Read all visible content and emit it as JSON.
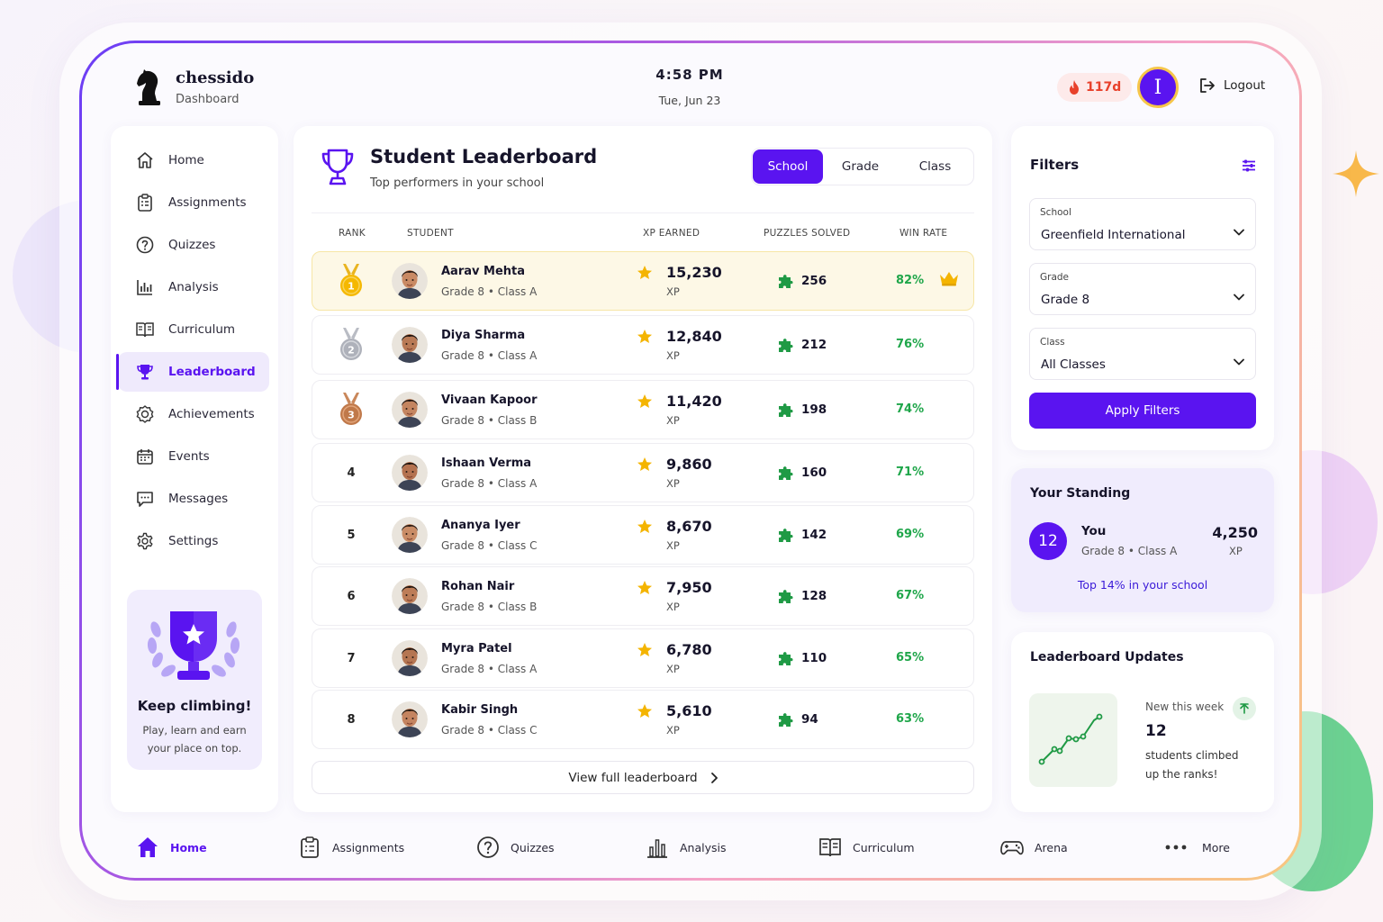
{
  "app": {
    "brand": "chessido",
    "subtitle": "Dashboard"
  },
  "header": {
    "time": "4:58 PM",
    "date": "Tue, Jun 23",
    "streak": "117d",
    "avatar_initial": "I",
    "logout": "Logout"
  },
  "sidebar": {
    "items": [
      {
        "label": "Home",
        "icon": "home-icon"
      },
      {
        "label": "Assignments",
        "icon": "clipboard-icon"
      },
      {
        "label": "Quizzes",
        "icon": "question-icon"
      },
      {
        "label": "Analysis",
        "icon": "bar-chart-icon"
      },
      {
        "label": "Curriculum",
        "icon": "book-icon"
      },
      {
        "label": "Leaderboard",
        "icon": "trophy-icon",
        "active": true
      },
      {
        "label": "Achievements",
        "icon": "badge-icon"
      },
      {
        "label": "Events",
        "icon": "calendar-icon"
      },
      {
        "label": "Messages",
        "icon": "chat-icon"
      },
      {
        "label": "Settings",
        "icon": "gear-icon"
      }
    ],
    "promo": {
      "title": "Keep climbing!",
      "text": "Play, learn and earn your place on top."
    }
  },
  "board": {
    "title": "Student Leaderboard",
    "subtitle": "Top performers in your school",
    "scopes": [
      "School",
      "Grade",
      "Class"
    ],
    "active_scope": "School",
    "columns": {
      "rank": "RANK",
      "student": "STUDENT",
      "xp": "XP EARNED",
      "puzzles": "PUZZLES SOLVED",
      "win": "WIN RATE"
    },
    "xp_unit": "XP",
    "rows": [
      {
        "rank": "1",
        "name": "Aarav Mehta",
        "meta": "Grade 8 • Class A",
        "xp": "15,230",
        "puzzles": "256",
        "win": "82%"
      },
      {
        "rank": "2",
        "name": "Diya Sharma",
        "meta": "Grade 8 • Class A",
        "xp": "12,840",
        "puzzles": "212",
        "win": "76%"
      },
      {
        "rank": "3",
        "name": "Vivaan Kapoor",
        "meta": "Grade 8 • Class B",
        "xp": "11,420",
        "puzzles": "198",
        "win": "74%"
      },
      {
        "rank": "4",
        "name": "Ishaan Verma",
        "meta": "Grade 8 • Class A",
        "xp": "9,860",
        "puzzles": "160",
        "win": "71%"
      },
      {
        "rank": "5",
        "name": "Ananya Iyer",
        "meta": "Grade 8 • Class C",
        "xp": "8,670",
        "puzzles": "142",
        "win": "69%"
      },
      {
        "rank": "6",
        "name": "Rohan Nair",
        "meta": "Grade 8 • Class B",
        "xp": "7,950",
        "puzzles": "128",
        "win": "67%"
      },
      {
        "rank": "7",
        "name": "Myra Patel",
        "meta": "Grade 8 • Class A",
        "xp": "6,780",
        "puzzles": "110",
        "win": "65%"
      },
      {
        "rank": "8",
        "name": "Kabir Singh",
        "meta": "Grade 8 • Class C",
        "xp": "5,610",
        "puzzles": "94",
        "win": "63%"
      }
    ],
    "view_full": "View full leaderboard"
  },
  "filters": {
    "title": "Filters",
    "school": {
      "label": "School",
      "value": "Greenfield International"
    },
    "grade": {
      "label": "Grade",
      "value": "Grade 8"
    },
    "class": {
      "label": "Class",
      "value": "All Classes"
    },
    "apply": "Apply Filters"
  },
  "standing": {
    "title": "Your Standing",
    "rank": "12",
    "name": "You",
    "meta": "Grade 8 • Class A",
    "xp": "4,250",
    "xp_unit": "XP",
    "top_text": "Top 14% in your school"
  },
  "updates": {
    "title": "Leaderboard Updates",
    "label": "New this week",
    "value": "12",
    "text": "students climbed up the ranks!"
  },
  "bottom_nav": [
    {
      "label": "Home",
      "icon": "home-icon"
    },
    {
      "label": "Assignments",
      "icon": "clipboard-icon"
    },
    {
      "label": "Quizzes",
      "icon": "question-icon"
    },
    {
      "label": "Analysis",
      "icon": "bar-chart-icon"
    },
    {
      "label": "Curriculum",
      "icon": "book-icon"
    },
    {
      "label": "Arena",
      "icon": "gamepad-icon"
    },
    {
      "label": "More",
      "icon": "more-icon"
    }
  ],
  "colors": {
    "accent": "#5a14f0",
    "win": "#1fa64a",
    "streak": "#e8412b",
    "gold": "#f4b400"
  }
}
